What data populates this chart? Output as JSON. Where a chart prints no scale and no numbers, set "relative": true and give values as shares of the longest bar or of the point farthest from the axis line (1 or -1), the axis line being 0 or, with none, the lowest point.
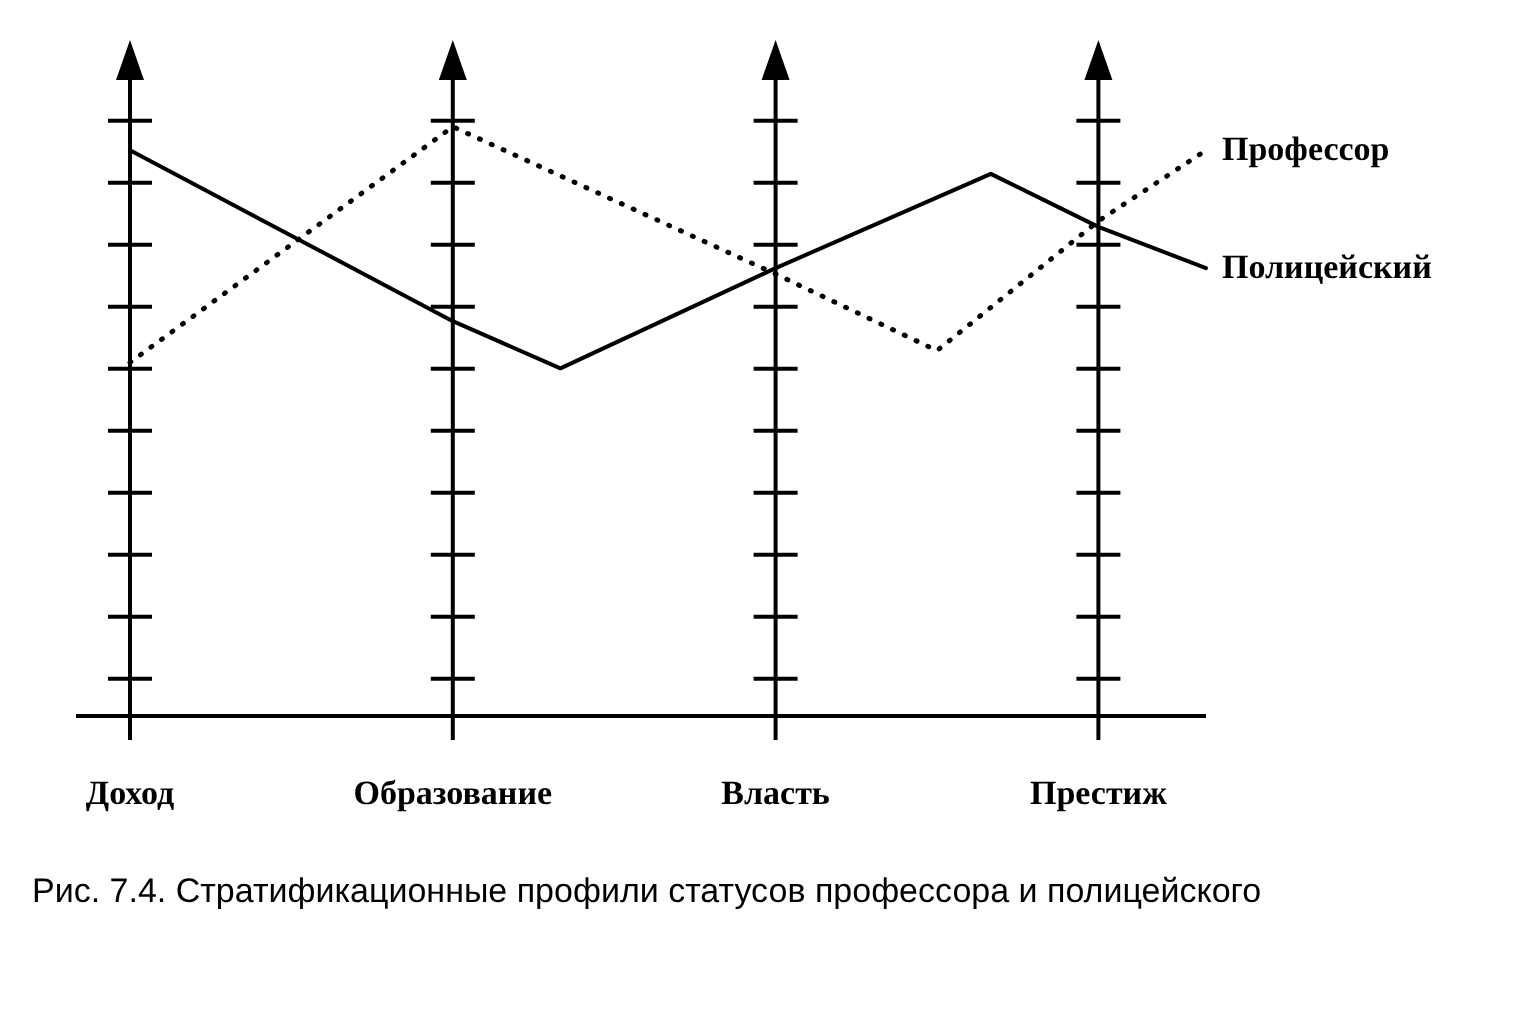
{
  "chart_data": {
    "type": "line",
    "relative": true,
    "categories": [
      "Доход",
      null,
      null,
      null,
      null,
      null,
      "Образование",
      null,
      null,
      null,
      null,
      null,
      "Власть",
      null,
      null,
      null,
      null,
      null,
      "Престиж",
      null,
      null
    ],
    "series": [
      {
        "name": "Профессор",
        "color": "#000000",
        "line_style": "dotted",
        "values": [
          0.6,
          null,
          null,
          null,
          null,
          null,
          1,
          null,
          null,
          null,
          null,
          null,
          0.75,
          null,
          null,
          0.62,
          null,
          null,
          0.84,
          null,
          0.96
        ]
      },
      {
        "name": "Полицейский",
        "color": "#000000",
        "line_style": "solid",
        "values": [
          0.96,
          null,
          null,
          null,
          null,
          null,
          0.67,
          null,
          0.59,
          null,
          null,
          null,
          0.76,
          null,
          null,
          null,
          0.92,
          null,
          0.83,
          null,
          0.76
        ]
      }
    ],
    "marker": "none",
    "grid": "x",
    "legend": false,
    "annotations": [
      "Рис. 7.4. Стратификационные профили статусов профессора и полицейского"
    ]
  }
}
